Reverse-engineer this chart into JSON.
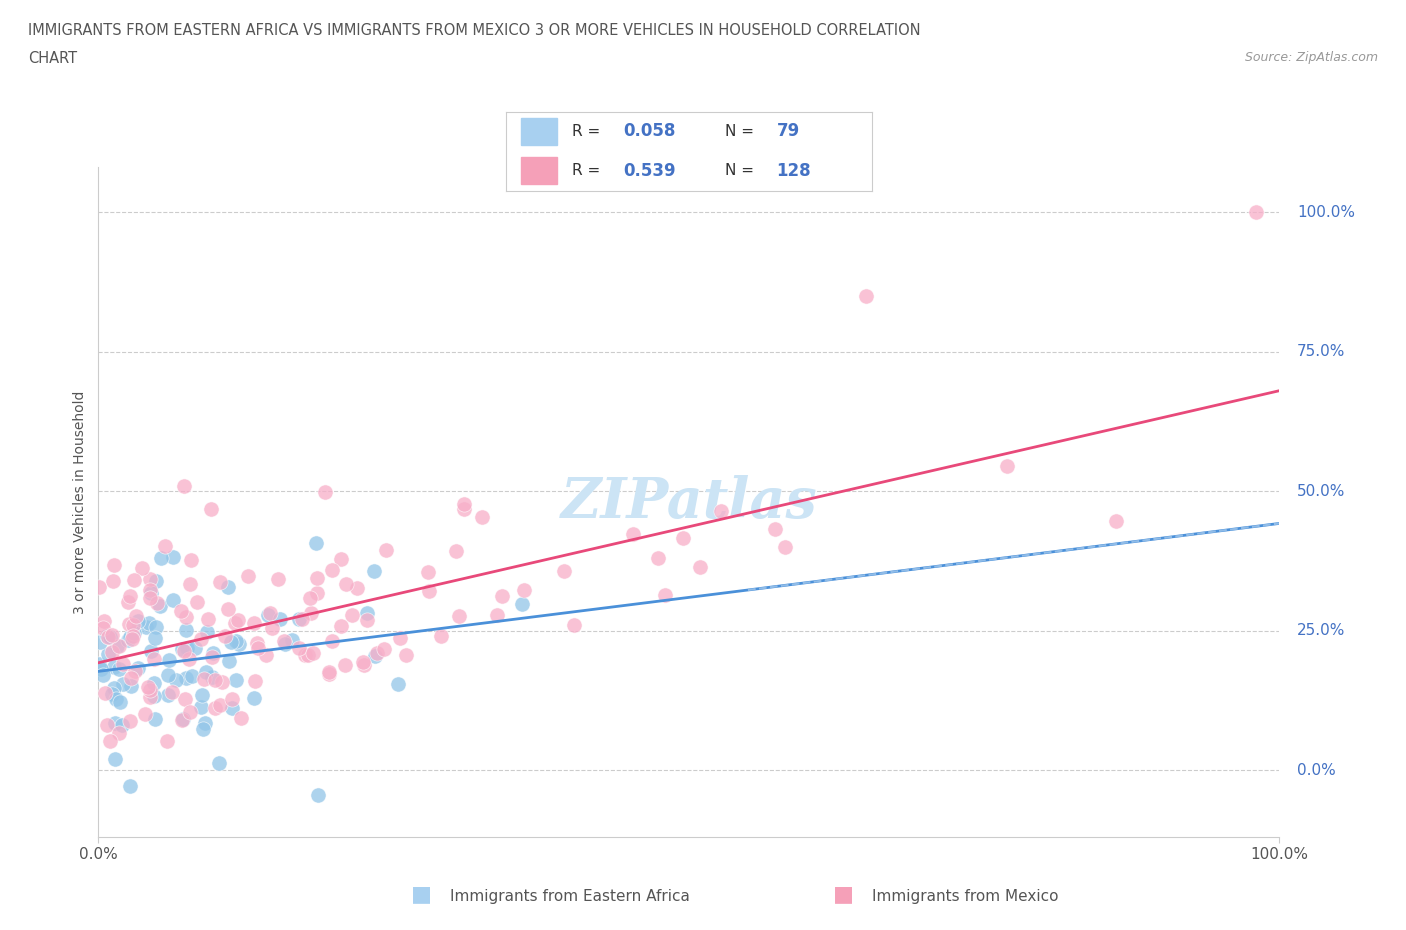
{
  "title_line1": "IMMIGRANTS FROM EASTERN AFRICA VS IMMIGRANTS FROM MEXICO 3 OR MORE VEHICLES IN HOUSEHOLD CORRELATION",
  "title_line2": "CHART",
  "source": "Source: ZipAtlas.com",
  "ylabel": "3 or more Vehicles in Household",
  "background_color": "#ffffff",
  "blue_scatter_color": "#92c5e8",
  "pink_scatter_color": "#f7aec8",
  "trend_blue_color": "#4a90d9",
  "trend_pink_color": "#e8497a",
  "trend_blue_dash_color": "#90bce8",
  "right_label_color": "#4472c4",
  "grid_color": "#cccccc",
  "title_color": "#555555",
  "source_color": "#999999",
  "watermark_color": "#cce4f5",
  "legend_blue_box": "#a8d0f0",
  "legend_pink_box": "#f5a0b8",
  "R_blue": 0.058,
  "N_blue": 79,
  "R_pink": 0.539,
  "N_pink": 128,
  "xmin": 0,
  "xmax": 100,
  "ymin": -12,
  "ymax": 108,
  "ytick_vals": [
    0,
    25,
    50,
    75,
    100
  ],
  "ytick_labels": [
    "0.0%",
    "25.0%",
    "50.0%",
    "75.0%",
    "100.0%"
  ],
  "xtick_vals": [
    0,
    100
  ],
  "xtick_labels": [
    "0.0%",
    "100.0%"
  ],
  "legend_label_blue": "Immigrants from Eastern Africa",
  "legend_label_pink": "Immigrants from Mexico"
}
